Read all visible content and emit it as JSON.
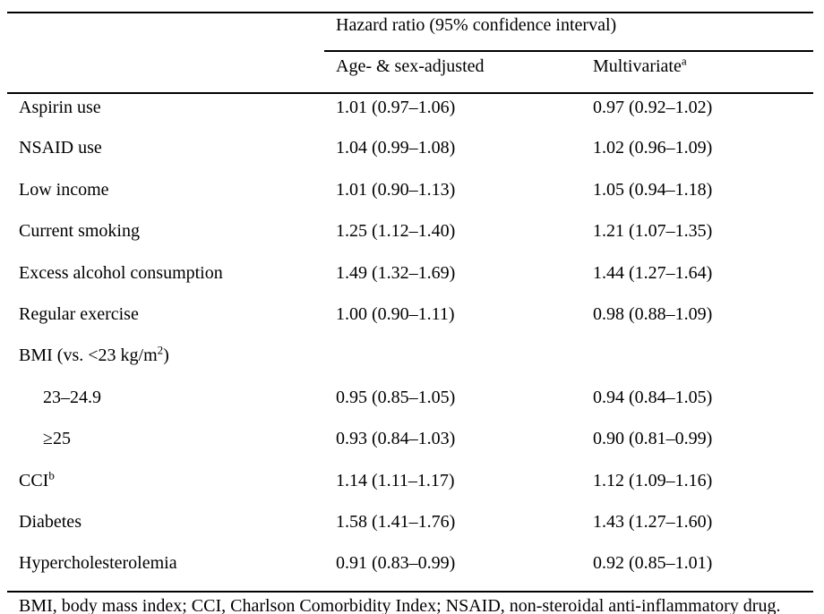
{
  "table": {
    "spanning_header": "Hazard ratio (95% confidence interval)",
    "columns": [
      {
        "label": "Age- & sex-adjusted",
        "sup": ""
      },
      {
        "label": "Multivariate",
        "sup": "a"
      }
    ],
    "rows": [
      {
        "label": "Aspirin use",
        "sup": "",
        "after": "",
        "values": [
          "1.01 (0.97–1.06)",
          "0.97 (0.92–1.02)"
        ]
      },
      {
        "label": "NSAID use",
        "sup": "",
        "after": "",
        "values": [
          "1.04 (0.99–1.08)",
          "1.02 (0.96–1.09)"
        ]
      },
      {
        "label": "Low income",
        "sup": "",
        "after": "",
        "values": [
          "1.01 (0.90–1.13)",
          "1.05 (0.94–1.18)"
        ]
      },
      {
        "label": "Current smoking",
        "sup": "",
        "after": "",
        "values": [
          "1.25 (1.12–1.40)",
          "1.21 (1.07–1.35)"
        ]
      },
      {
        "label": "Excess alcohol consumption",
        "sup": "",
        "after": "",
        "values": [
          "1.49 (1.32–1.69)",
          "1.44 (1.27–1.64)"
        ]
      },
      {
        "label": "Regular exercise",
        "sup": "",
        "after": "",
        "values": [
          "1.00 (0.90–1.11)",
          "0.98 (0.88–1.09)"
        ]
      },
      {
        "label": "BMI (vs. <23 kg/m",
        "sup": "2",
        "after": ")",
        "values": [
          "",
          ""
        ]
      },
      {
        "label": "23–24.9",
        "sup": "",
        "after": "",
        "values": [
          "0.95 (0.85–1.05)",
          "0.94 (0.84–1.05)"
        ]
      },
      {
        "label": "≥25",
        "sup": "",
        "after": "",
        "values": [
          "0.93 (0.84–1.03)",
          "0.90 (0.81–0.99)"
        ]
      },
      {
        "label": "CCI",
        "sup": "b",
        "after": "",
        "values": [
          "1.14 (1.11–1.17)",
          "1.12 (1.09–1.16)"
        ]
      },
      {
        "label": "Diabetes",
        "sup": "",
        "after": "",
        "values": [
          "1.58 (1.41–1.76)",
          "1.43 (1.27–1.60)"
        ]
      },
      {
        "label": "Hypercholesterolemia",
        "sup": "",
        "after": "",
        "values": [
          "0.91 (0.83–0.99)",
          "0.92 (0.85–1.01)"
        ]
      }
    ],
    "footnote": "BMI, body mass index; CCI, Charlson Comorbidity Index; NSAID, non-steroidal anti-inflammatory drug."
  }
}
